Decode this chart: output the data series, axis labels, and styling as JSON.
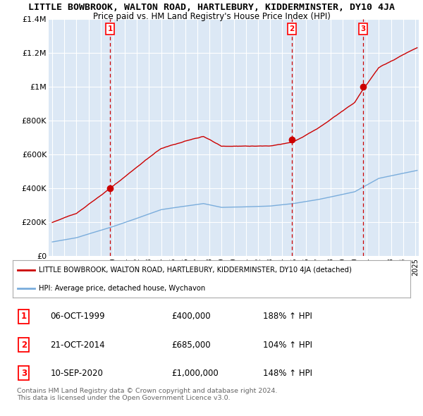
{
  "title": "LITTLE BOWBROOK, WALTON ROAD, HARTLEBURY, KIDDERMINSTER, DY10 4JA",
  "subtitle": "Price paid vs. HM Land Registry's House Price Index (HPI)",
  "title_fontsize": 9.5,
  "subtitle_fontsize": 8.5,
  "ylim": [
    0,
    1400000
  ],
  "yticks": [
    0,
    200000,
    400000,
    600000,
    800000,
    1000000,
    1200000,
    1400000
  ],
  "ytick_labels": [
    "£0",
    "£200K",
    "£400K",
    "£600K",
    "£800K",
    "£1M",
    "£1.2M",
    "£1.4M"
  ],
  "xlim_start": 1994.7,
  "xlim_end": 2025.3,
  "sale_dates": [
    1999.77,
    2014.8,
    2020.69
  ],
  "sale_prices": [
    400000,
    685000,
    1000000
  ],
  "sale_labels": [
    "1",
    "2",
    "3"
  ],
  "sale_label_dates": [
    "06-OCT-1999",
    "21-OCT-2014",
    "10-SEP-2020"
  ],
  "sale_label_prices": [
    "£400,000",
    "£685,000",
    "£1,000,000"
  ],
  "sale_label_pcts": [
    "188% ↑ HPI",
    "104% ↑ HPI",
    "148% ↑ HPI"
  ],
  "legend_red_label": "LITTLE BOWBROOK, WALTON ROAD, HARTLEBURY, KIDDERMINSTER, DY10 4JA (detached)",
  "legend_blue_label": "HPI: Average price, detached house, Wychavon",
  "footnote": "Contains HM Land Registry data © Crown copyright and database right 2024.\nThis data is licensed under the Open Government Licence v3.0.",
  "red_color": "#cc0000",
  "blue_color": "#7aaddc",
  "dashed_color": "#cc0000",
  "background_color": "#ffffff",
  "plot_bg_color": "#dce8f5",
  "grid_color": "#ffffff"
}
